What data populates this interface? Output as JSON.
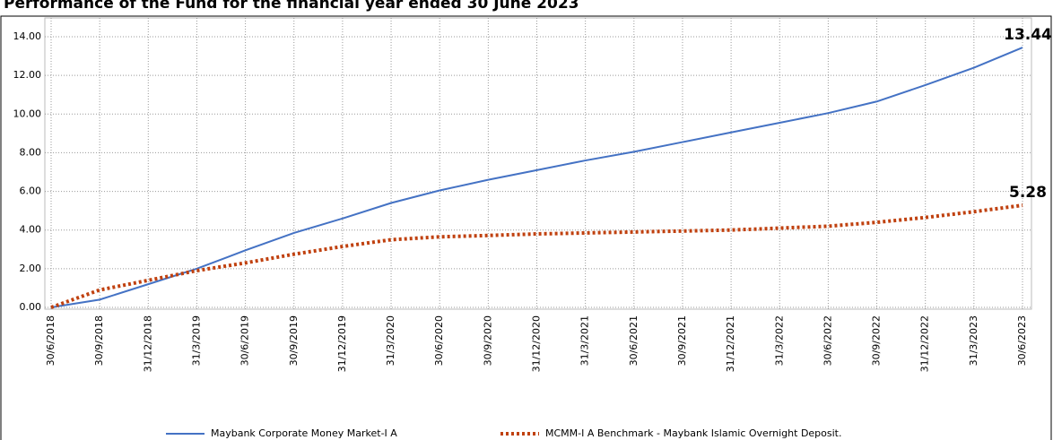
{
  "chart_data": {
    "type": "line",
    "title": "Performance of the Fund for the financial year ended 30 June 2023",
    "categories": [
      "30/6/2018",
      "30/9/2018",
      "31/12/2018",
      "31/3/2019",
      "30/6/2019",
      "30/9/2019",
      "31/12/2019",
      "31/3/2020",
      "30/6/2020",
      "30/9/2020",
      "31/12/2020",
      "31/3/2021",
      "30/6/2021",
      "30/9/2021",
      "31/12/2021",
      "31/3/2022",
      "30/6/2022",
      "30/9/2022",
      "31/12/2022",
      "31/3/2023",
      "30/6/2023"
    ],
    "series": [
      {
        "name": "Maybank Corporate Money Market-I A",
        "color": "#4472c4",
        "style": "solid",
        "values": [
          0,
          0.4,
          1.2,
          2.0,
          2.95,
          3.85,
          4.6,
          5.4,
          6.05,
          6.6,
          7.1,
          7.6,
          8.05,
          8.55,
          9.05,
          9.55,
          10.05,
          10.65,
          11.5,
          12.4,
          13.44
        ],
        "value_labels": [
          null,
          null,
          null,
          null,
          null,
          null,
          null,
          null,
          null,
          null,
          null,
          null,
          null,
          null,
          null,
          null,
          null,
          null,
          null,
          null,
          "13.44"
        ]
      },
      {
        "name": "MCMM-I A Benchmark - Maybank Islamic Overnight Deposit.",
        "color": "#c0410f",
        "style": "dotted",
        "values": [
          0,
          0.9,
          1.4,
          1.9,
          2.3,
          2.75,
          3.15,
          3.5,
          3.65,
          3.72,
          3.8,
          3.85,
          3.9,
          3.95,
          4.0,
          4.1,
          4.2,
          4.4,
          4.65,
          4.95,
          5.28
        ],
        "value_labels": [
          null,
          null,
          null,
          null,
          null,
          null,
          null,
          null,
          null,
          null,
          null,
          null,
          null,
          null,
          null,
          null,
          null,
          null,
          null,
          null,
          "5.28"
        ]
      }
    ],
    "ylim": [
      0,
      14
    ],
    "yticks": [
      {
        "value": 0,
        "label": "0.00"
      },
      {
        "value": 2,
        "label": "2.00"
      },
      {
        "value": 4,
        "label": "4.00"
      },
      {
        "value": 6,
        "label": "6.00"
      },
      {
        "value": 8,
        "label": "8.00"
      },
      {
        "value": 10,
        "label": "10.00"
      },
      {
        "value": 12,
        "label": "12.00"
      },
      {
        "value": 14,
        "label": "14.00"
      }
    ],
    "grid": true,
    "legend": "bottom"
  }
}
